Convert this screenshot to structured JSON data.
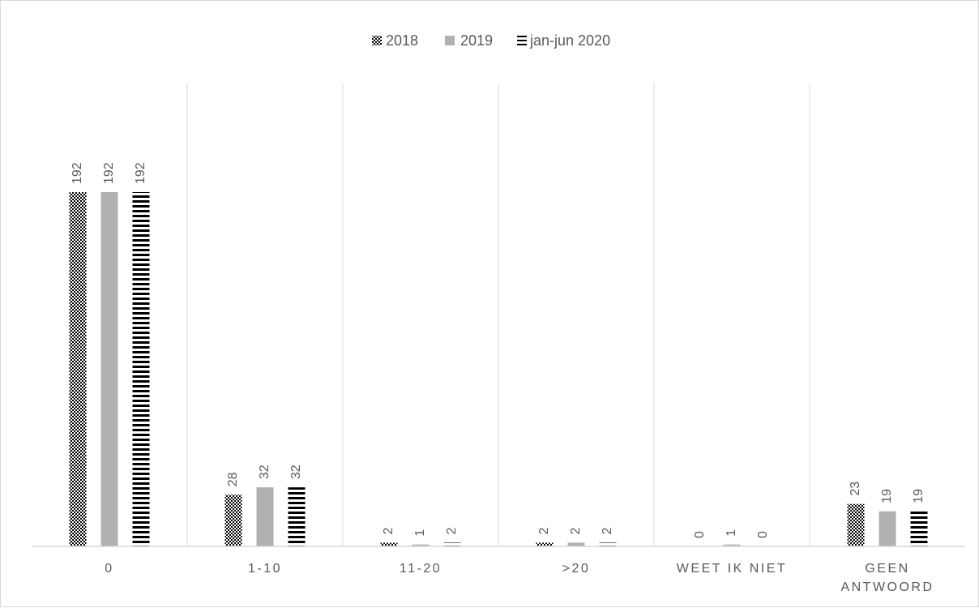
{
  "chart_data": {
    "type": "bar",
    "title": "",
    "xlabel": "",
    "ylabel": "",
    "categories": [
      "0",
      "1-10",
      "11-20",
      ">20",
      "WEET IK NIET",
      "GEEN ANTWOORD"
    ],
    "category_lines": [
      [
        "0"
      ],
      [
        "1-10"
      ],
      [
        "11-20"
      ],
      [
        ">20"
      ],
      [
        "WEET IK NIET"
      ],
      [
        "GEEN",
        "ANTWOORD"
      ]
    ],
    "series": [
      {
        "name": "2018",
        "values": [
          192,
          28,
          2,
          2,
          0,
          23
        ],
        "color": "#000000",
        "pattern": "dots"
      },
      {
        "name": "2019",
        "values": [
          192,
          32,
          1,
          2,
          1,
          19
        ],
        "color": "#b0b0b0",
        "pattern": "solid"
      },
      {
        "name": "jan-jun 2020",
        "values": [
          192,
          32,
          2,
          2,
          0,
          19
        ],
        "color": "#000000",
        "pattern": "horizontal-stripes"
      }
    ],
    "ylim": [
      0,
      200
    ],
    "grid": "vertical category separators",
    "legend_position": "top-center",
    "data_labels": "rotated above bars"
  }
}
